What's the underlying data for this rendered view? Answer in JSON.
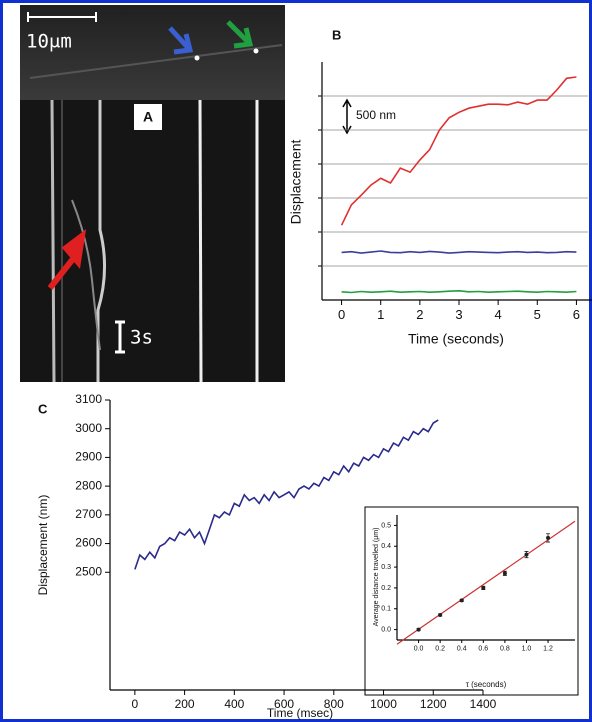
{
  "panel_a": {
    "label": "A",
    "scale_bar": "10μm",
    "time_bar": "3s"
  },
  "chart_data": [
    {
      "type": "line",
      "panel_label": "B",
      "y_label": "Displacement",
      "x_label": "Time (seconds)",
      "annotation": "500 nm",
      "x": [
        0,
        0.25,
        0.5,
        0.75,
        1,
        1.25,
        1.5,
        1.75,
        2,
        2.25,
        2.5,
        2.75,
        3,
        3.25,
        3.5,
        3.75,
        4,
        4.25,
        4.5,
        4.75,
        5,
        5.25,
        5.5,
        5.75,
        6
      ],
      "series": [
        {
          "color": "#e03030",
          "values": [
            1100,
            1400,
            1540,
            1690,
            1790,
            1720,
            1940,
            1880,
            2060,
            2210,
            2500,
            2680,
            2760,
            2820,
            2850,
            2880,
            2880,
            2870,
            2910,
            2880,
            2940,
            2940,
            3090,
            3260,
            3280
          ]
        },
        {
          "color": "#3a3ea0",
          "values": [
            700,
            710,
            690,
            705,
            720,
            700,
            695,
            710,
            700,
            715,
            705,
            690,
            700,
            710,
            705,
            700,
            695,
            705,
            710,
            700,
            705,
            695,
            700,
            710,
            705
          ]
        },
        {
          "color": "#20a040",
          "values": [
            120,
            110,
            125,
            115,
            120,
            130,
            115,
            120,
            125,
            115,
            120,
            130,
            135,
            120,
            125,
            115,
            120,
            125,
            130,
            120,
            115,
            125,
            120,
            115,
            125
          ]
        }
      ],
      "xlim": [
        -0.5,
        6.5
      ],
      "ylim": [
        0,
        3500
      ],
      "xticks": [
        0,
        1,
        2,
        3,
        4,
        5,
        6
      ],
      "ygrid": [
        500,
        1000,
        1500,
        2000,
        2500,
        3000
      ],
      "grid": true
    },
    {
      "type": "line",
      "panel_label": "C",
      "y_label": "Displacement (nm)",
      "x_label": "Time (msec)",
      "x": [
        0,
        20,
        40,
        60,
        80,
        100,
        120,
        140,
        160,
        180,
        200,
        220,
        240,
        260,
        280,
        300,
        320,
        340,
        360,
        380,
        400,
        420,
        440,
        460,
        480,
        500,
        520,
        540,
        560,
        580,
        600,
        620,
        640,
        660,
        680,
        700,
        720,
        740,
        760,
        780,
        800,
        820,
        840,
        860,
        880,
        900,
        920,
        940,
        960,
        980,
        1000,
        1020,
        1040,
        1060,
        1080,
        1100,
        1120,
        1140,
        1160,
        1180,
        1200,
        1220
      ],
      "series": [
        {
          "color": "#2a2a8c",
          "values": [
            2510,
            2560,
            2545,
            2570,
            2550,
            2590,
            2600,
            2620,
            2610,
            2640,
            2630,
            2650,
            2620,
            2640,
            2600,
            2650,
            2700,
            2690,
            2710,
            2700,
            2740,
            2730,
            2770,
            2750,
            2760,
            2740,
            2770,
            2750,
            2780,
            2760,
            2770,
            2780,
            2760,
            2790,
            2800,
            2790,
            2810,
            2800,
            2830,
            2820,
            2850,
            2840,
            2870,
            2850,
            2880,
            2870,
            2900,
            2890,
            2910,
            2900,
            2930,
            2920,
            2950,
            2940,
            2970,
            2960,
            2990,
            2980,
            3000,
            2990,
            3020,
            3030
          ]
        }
      ],
      "xlim": [
        -100,
        1400
      ],
      "ylim": [
        2090,
        3100
      ],
      "xticks": [
        0,
        200,
        400,
        600,
        800,
        1000,
        1200,
        1400
      ],
      "yticks": [
        2500,
        2600,
        2700,
        2800,
        2900,
        3000,
        3100
      ]
    },
    {
      "type": "scatter",
      "y_label": "Average distance travelled (μm)",
      "x_label": "τ (seconds)",
      "x": [
        0,
        0.2,
        0.4,
        0.6,
        0.8,
        1,
        1.2
      ],
      "values": [
        0,
        0.07,
        0.14,
        0.2,
        0.27,
        0.36,
        0.44
      ],
      "errors": [
        0.005,
        0.005,
        0.005,
        0.008,
        0.01,
        0.015,
        0.02
      ],
      "color": "#222222",
      "fit": {
        "x": [
          -0.2,
          1.45
        ],
        "values": [
          -0.07,
          0.52
        ],
        "color": "#d03030"
      },
      "xlim": [
        -0.2,
        1.45
      ],
      "ylim": [
        -0.05,
        0.55
      ],
      "xticks": [
        {
          "value": 0,
          "label": "0.0"
        },
        0.2,
        0.4,
        0.6,
        0.8,
        {
          "value": 1,
          "label": "1.0"
        },
        1.2
      ],
      "yticks": [
        {
          "value": 0,
          "label": "0.0"
        },
        0.1,
        0.2,
        0.3,
        0.4,
        0.5
      ]
    }
  ]
}
